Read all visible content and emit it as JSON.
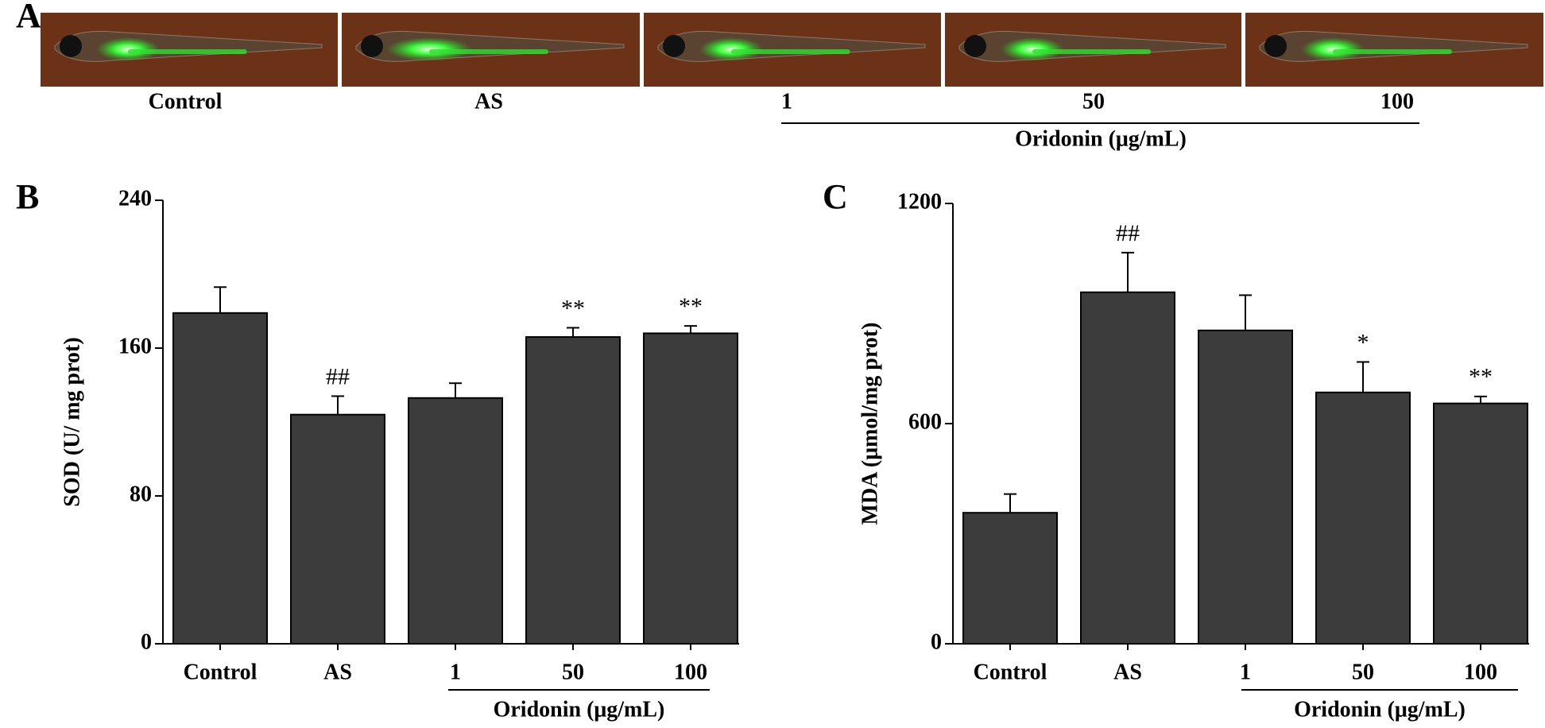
{
  "panel_a": {
    "label": "A",
    "image_labels": [
      "Control",
      "AS",
      "1",
      "50",
      "100"
    ],
    "group_label": "Oridonin (μg/mL)"
  },
  "chart_data": [
    {
      "type": "bar",
      "panel_label": "B",
      "ylabel": "SOD  (U/ mg prot)",
      "categories": [
        "Control",
        "AS",
        "1",
        "50",
        "100"
      ],
      "values": [
        179,
        124,
        133,
        166,
        168
      ],
      "errors": [
        14,
        10,
        8,
        5,
        4
      ],
      "annotations": [
        null,
        "##",
        null,
        "**",
        "**"
      ],
      "group_label": "Oridonin (μg/mL)",
      "color": "#3c3c3c",
      "ylim": [
        0,
        240
      ],
      "yticks": [
        0,
        80,
        160,
        240
      ]
    },
    {
      "type": "bar",
      "panel_label": "C",
      "ylabel": "MDA  (μmol/mg prot)",
      "categories": [
        "Control",
        "AS",
        "1",
        "50",
        "100"
      ],
      "values": [
        357,
        958,
        854,
        685,
        655
      ],
      "errors": [
        51,
        108,
        96,
        83,
        19
      ],
      "annotations": [
        null,
        "##",
        null,
        "*",
        "**"
      ],
      "group_label": "Oridonin (μg/mL)",
      "color": "#3c3c3c",
      "ylim": [
        0,
        1200
      ],
      "yticks": [
        0,
        600,
        1200
      ]
    }
  ]
}
